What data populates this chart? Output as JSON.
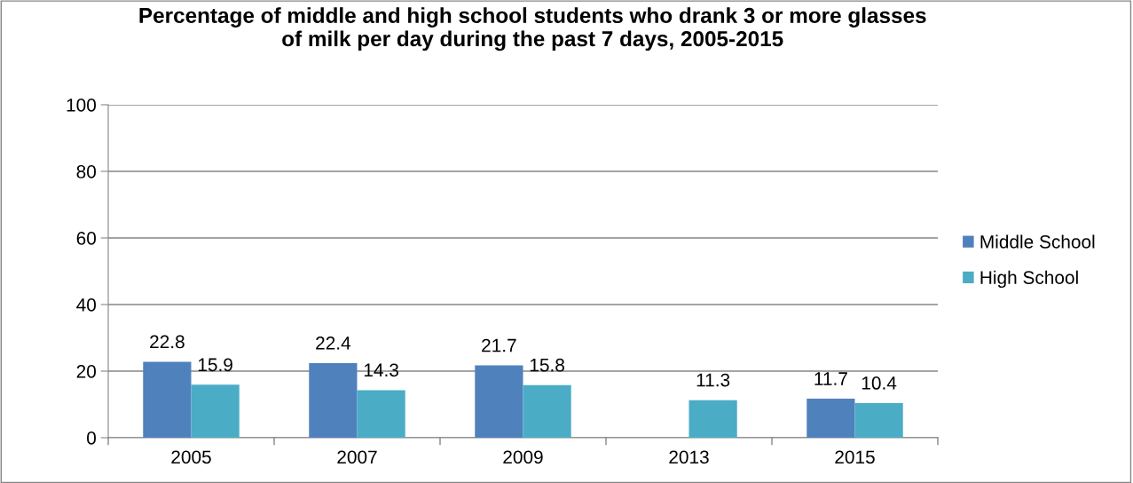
{
  "chart_data": {
    "type": "bar",
    "title": "Percentage of middle and high school students who drank 3 or more glasses of milk per day during the past 7 days, 2005-2015",
    "categories": [
      "2005",
      "2007",
      "2009",
      "2013",
      "2015"
    ],
    "series": [
      {
        "name": "Middle School",
        "color": "#4f81bd",
        "values": [
          22.8,
          22.4,
          21.7,
          null,
          11.7
        ]
      },
      {
        "name": "High School",
        "color": "#4bacc6",
        "values": [
          15.9,
          14.3,
          15.8,
          11.3,
          10.4
        ]
      }
    ],
    "ylim": [
      0,
      100
    ],
    "yticks": [
      0,
      20,
      40,
      60,
      80,
      100
    ],
    "grid": "y",
    "legend": "right",
    "data_labels": true
  }
}
